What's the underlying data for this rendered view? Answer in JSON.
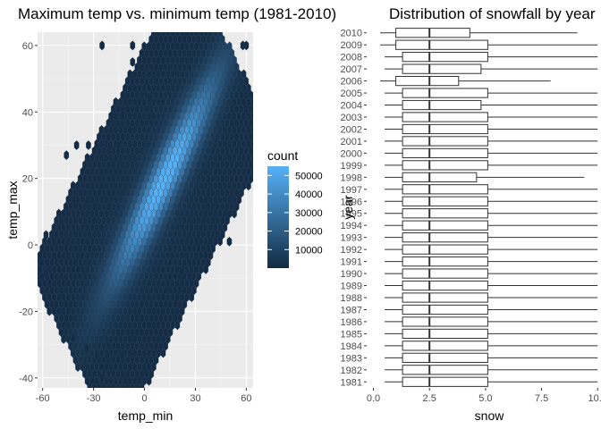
{
  "chart_data": [
    {
      "type": "hexbin",
      "title": "Maximum temp vs. minimum temp (1981-2010)",
      "xlabel": "temp_min",
      "ylabel": "temp_max",
      "xlim": [
        -63,
        64
      ],
      "ylim": [
        -43,
        64
      ],
      "xticks": [
        -60,
        -30,
        0,
        30,
        60
      ],
      "xtick_labels": [
        "-60",
        "-30",
        "0",
        "30",
        "60"
      ],
      "yticks": [
        -40,
        -20,
        0,
        20,
        40,
        60
      ],
      "ytick_labels": [
        "-40",
        "-20",
        "0",
        "20",
        "40",
        "60"
      ],
      "legend": {
        "title": "count",
        "ticks": [
          10000,
          20000,
          30000,
          40000,
          50000
        ],
        "tick_labels": [
          "10000",
          "20000",
          "30000",
          "40000",
          "50000"
        ],
        "min": 1,
        "max": 55000,
        "low_color": "#132B43",
        "high_color": "#56B1F7"
      },
      "ridge": {
        "intercept": 8,
        "slope": 1.0,
        "peak_x": 10,
        "peak_count": 55000
      },
      "isolated_bins": [
        [
          -25,
          60
        ],
        [
          -7,
          60
        ],
        [
          -7,
          55
        ],
        [
          58,
          60
        ],
        [
          60,
          60
        ],
        [
          3,
          44
        ],
        [
          -13,
          39
        ],
        [
          -40,
          30
        ],
        [
          -33,
          30
        ],
        [
          -20,
          30
        ],
        [
          -15,
          30
        ],
        [
          -46,
          27
        ],
        [
          50,
          1
        ],
        [
          -58,
          3
        ],
        [
          -58,
          -8
        ],
        [
          22,
          -8
        ],
        [
          -42,
          -28
        ],
        [
          -34,
          -31
        ],
        [
          -22,
          -33
        ],
        [
          -28,
          -33
        ],
        [
          -13,
          -33
        ],
        [
          -25,
          -40
        ]
      ]
    },
    {
      "type": "boxplot",
      "orientation": "horizontal",
      "title": "Distribution of snowfall by year",
      "xlabel": "snow",
      "ylabel": "year",
      "xlim": [
        -0.3,
        10.15
      ],
      "xticks": [
        0,
        2.5,
        5,
        7.5,
        10
      ],
      "xtick_labels": [
        "0.0",
        "2.5",
        "5.0",
        "7.5",
        "10.0"
      ],
      "categories": [
        "1981",
        "1982",
        "1983",
        "1984",
        "1985",
        "1986",
        "1987",
        "1988",
        "1989",
        "1990",
        "1991",
        "1992",
        "1993",
        "1994",
        "1995",
        "1996",
        "1997",
        "1998",
        "1999",
        "2000",
        "2001",
        "2002",
        "2003",
        "2004",
        "2005",
        "2006",
        "2007",
        "2008",
        "2009",
        "2010"
      ],
      "boxes": [
        {
          "year": "1981",
          "q1": 1.3,
          "median": 2.5,
          "q3": 5.1,
          "whisker_low": 0.5,
          "whisker_high": 10.0
        },
        {
          "year": "1982",
          "q1": 1.3,
          "median": 2.5,
          "q3": 5.1,
          "whisker_low": 0.5,
          "whisker_high": 10.0
        },
        {
          "year": "1983",
          "q1": 1.3,
          "median": 2.5,
          "q3": 5.1,
          "whisker_low": 0.5,
          "whisker_high": 10.0
        },
        {
          "year": "1984",
          "q1": 1.3,
          "median": 2.5,
          "q3": 5.1,
          "whisker_low": 0.5,
          "whisker_high": 10.0
        },
        {
          "year": "1985",
          "q1": 1.3,
          "median": 2.5,
          "q3": 5.1,
          "whisker_low": 0.5,
          "whisker_high": 10.0
        },
        {
          "year": "1986",
          "q1": 1.3,
          "median": 2.5,
          "q3": 5.1,
          "whisker_low": 0.5,
          "whisker_high": 10.0
        },
        {
          "year": "1987",
          "q1": 1.3,
          "median": 2.5,
          "q3": 5.1,
          "whisker_low": 0.5,
          "whisker_high": 10.0
        },
        {
          "year": "1988",
          "q1": 1.3,
          "median": 2.5,
          "q3": 5.1,
          "whisker_low": 0.5,
          "whisker_high": 10.0
        },
        {
          "year": "1989",
          "q1": 1.3,
          "median": 2.5,
          "q3": 5.1,
          "whisker_low": 0.5,
          "whisker_high": 10.0
        },
        {
          "year": "1990",
          "q1": 1.3,
          "median": 2.5,
          "q3": 5.1,
          "whisker_low": 0.5,
          "whisker_high": 10.0
        },
        {
          "year": "1991",
          "q1": 1.3,
          "median": 2.5,
          "q3": 5.1,
          "whisker_low": 0.5,
          "whisker_high": 10.0
        },
        {
          "year": "1992",
          "q1": 1.3,
          "median": 2.5,
          "q3": 5.1,
          "whisker_low": 0.5,
          "whisker_high": 10.0
        },
        {
          "year": "1993",
          "q1": 1.3,
          "median": 2.5,
          "q3": 5.1,
          "whisker_low": 0.5,
          "whisker_high": 10.0
        },
        {
          "year": "1994",
          "q1": 1.3,
          "median": 2.5,
          "q3": 5.1,
          "whisker_low": 0.5,
          "whisker_high": 10.0
        },
        {
          "year": "1995",
          "q1": 1.3,
          "median": 2.5,
          "q3": 5.1,
          "whisker_low": 0.5,
          "whisker_high": 10.0
        },
        {
          "year": "1996",
          "q1": 1.3,
          "median": 2.5,
          "q3": 5.1,
          "whisker_low": 0.5,
          "whisker_high": 10.0
        },
        {
          "year": "1997",
          "q1": 1.3,
          "median": 2.5,
          "q3": 5.1,
          "whisker_low": 0.5,
          "whisker_high": 10.0
        },
        {
          "year": "1998",
          "q1": 1.3,
          "median": 2.5,
          "q3": 4.6,
          "whisker_low": 0.5,
          "whisker_high": 9.4
        },
        {
          "year": "1999",
          "q1": 1.3,
          "median": 2.5,
          "q3": 5.1,
          "whisker_low": 0.5,
          "whisker_high": 10.0
        },
        {
          "year": "2000",
          "q1": 1.3,
          "median": 2.5,
          "q3": 5.1,
          "whisker_low": 0.5,
          "whisker_high": 10.0
        },
        {
          "year": "2001",
          "q1": 1.3,
          "median": 2.5,
          "q3": 5.1,
          "whisker_low": 0.5,
          "whisker_high": 10.0
        },
        {
          "year": "2002",
          "q1": 1.3,
          "median": 2.5,
          "q3": 5.1,
          "whisker_low": 0.5,
          "whisker_high": 10.0
        },
        {
          "year": "2003",
          "q1": 1.3,
          "median": 2.5,
          "q3": 5.1,
          "whisker_low": 0.5,
          "whisker_high": 10.0
        },
        {
          "year": "2004",
          "q1": 1.3,
          "median": 2.5,
          "q3": 4.8,
          "whisker_low": 0.5,
          "whisker_high": 10.0
        },
        {
          "year": "2005",
          "q1": 1.3,
          "median": 2.5,
          "q3": 5.1,
          "whisker_low": 0.5,
          "whisker_high": 10.0
        },
        {
          "year": "2006",
          "q1": 1.0,
          "median": 2.5,
          "q3": 3.8,
          "whisker_low": 0.3,
          "whisker_high": 7.9
        },
        {
          "year": "2007",
          "q1": 1.3,
          "median": 2.5,
          "q3": 4.8,
          "whisker_low": 0.5,
          "whisker_high": 10.0
        },
        {
          "year": "2008",
          "q1": 1.3,
          "median": 2.5,
          "q3": 5.1,
          "whisker_low": 0.5,
          "whisker_high": 10.0
        },
        {
          "year": "2009",
          "q1": 1.0,
          "median": 2.5,
          "q3": 5.1,
          "whisker_low": 0.3,
          "whisker_high": 10.0
        },
        {
          "year": "2010",
          "q1": 1.0,
          "median": 2.5,
          "q3": 4.3,
          "whisker_low": 0.3,
          "whisker_high": 9.1
        }
      ]
    }
  ]
}
